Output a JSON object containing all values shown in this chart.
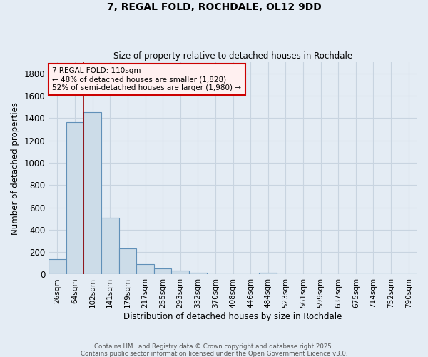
{
  "title": "7, REGAL FOLD, ROCHDALE, OL12 9DD",
  "subtitle": "Size of property relative to detached houses in Rochdale",
  "xlabel": "Distribution of detached houses by size in Rochdale",
  "ylabel": "Number of detached properties",
  "bar_color": "#ccdce8",
  "bar_edge_color": "#6090b8",
  "background_color": "#e4ecf4",
  "grid_color": "#c8d4e0",
  "categories": [
    "26sqm",
    "64sqm",
    "102sqm",
    "141sqm",
    "179sqm",
    "217sqm",
    "255sqm",
    "293sqm",
    "332sqm",
    "370sqm",
    "408sqm",
    "446sqm",
    "484sqm",
    "523sqm",
    "561sqm",
    "599sqm",
    "637sqm",
    "675sqm",
    "714sqm",
    "752sqm",
    "790sqm"
  ],
  "values": [
    140,
    1365,
    1450,
    510,
    230,
    90,
    52,
    32,
    18,
    5,
    5,
    5,
    18,
    0,
    0,
    0,
    0,
    0,
    0,
    0,
    0
  ],
  "ylim": [
    0,
    1900
  ],
  "yticks": [
    0,
    200,
    400,
    600,
    800,
    1000,
    1200,
    1400,
    1600,
    1800
  ],
  "vline_x": 1.5,
  "vline_color": "#990000",
  "annotation_text": "7 REGAL FOLD: 110sqm\n← 48% of detached houses are smaller (1,828)\n52% of semi-detached houses are larger (1,980) →",
  "annotation_box_facecolor": "#fff0f0",
  "annotation_border_color": "#cc0000",
  "footer_text": "Contains HM Land Registry data © Crown copyright and database right 2025.\nContains public sector information licensed under the Open Government Licence v3.0.",
  "figsize": [
    6.0,
    5.0
  ],
  "dpi": 100
}
